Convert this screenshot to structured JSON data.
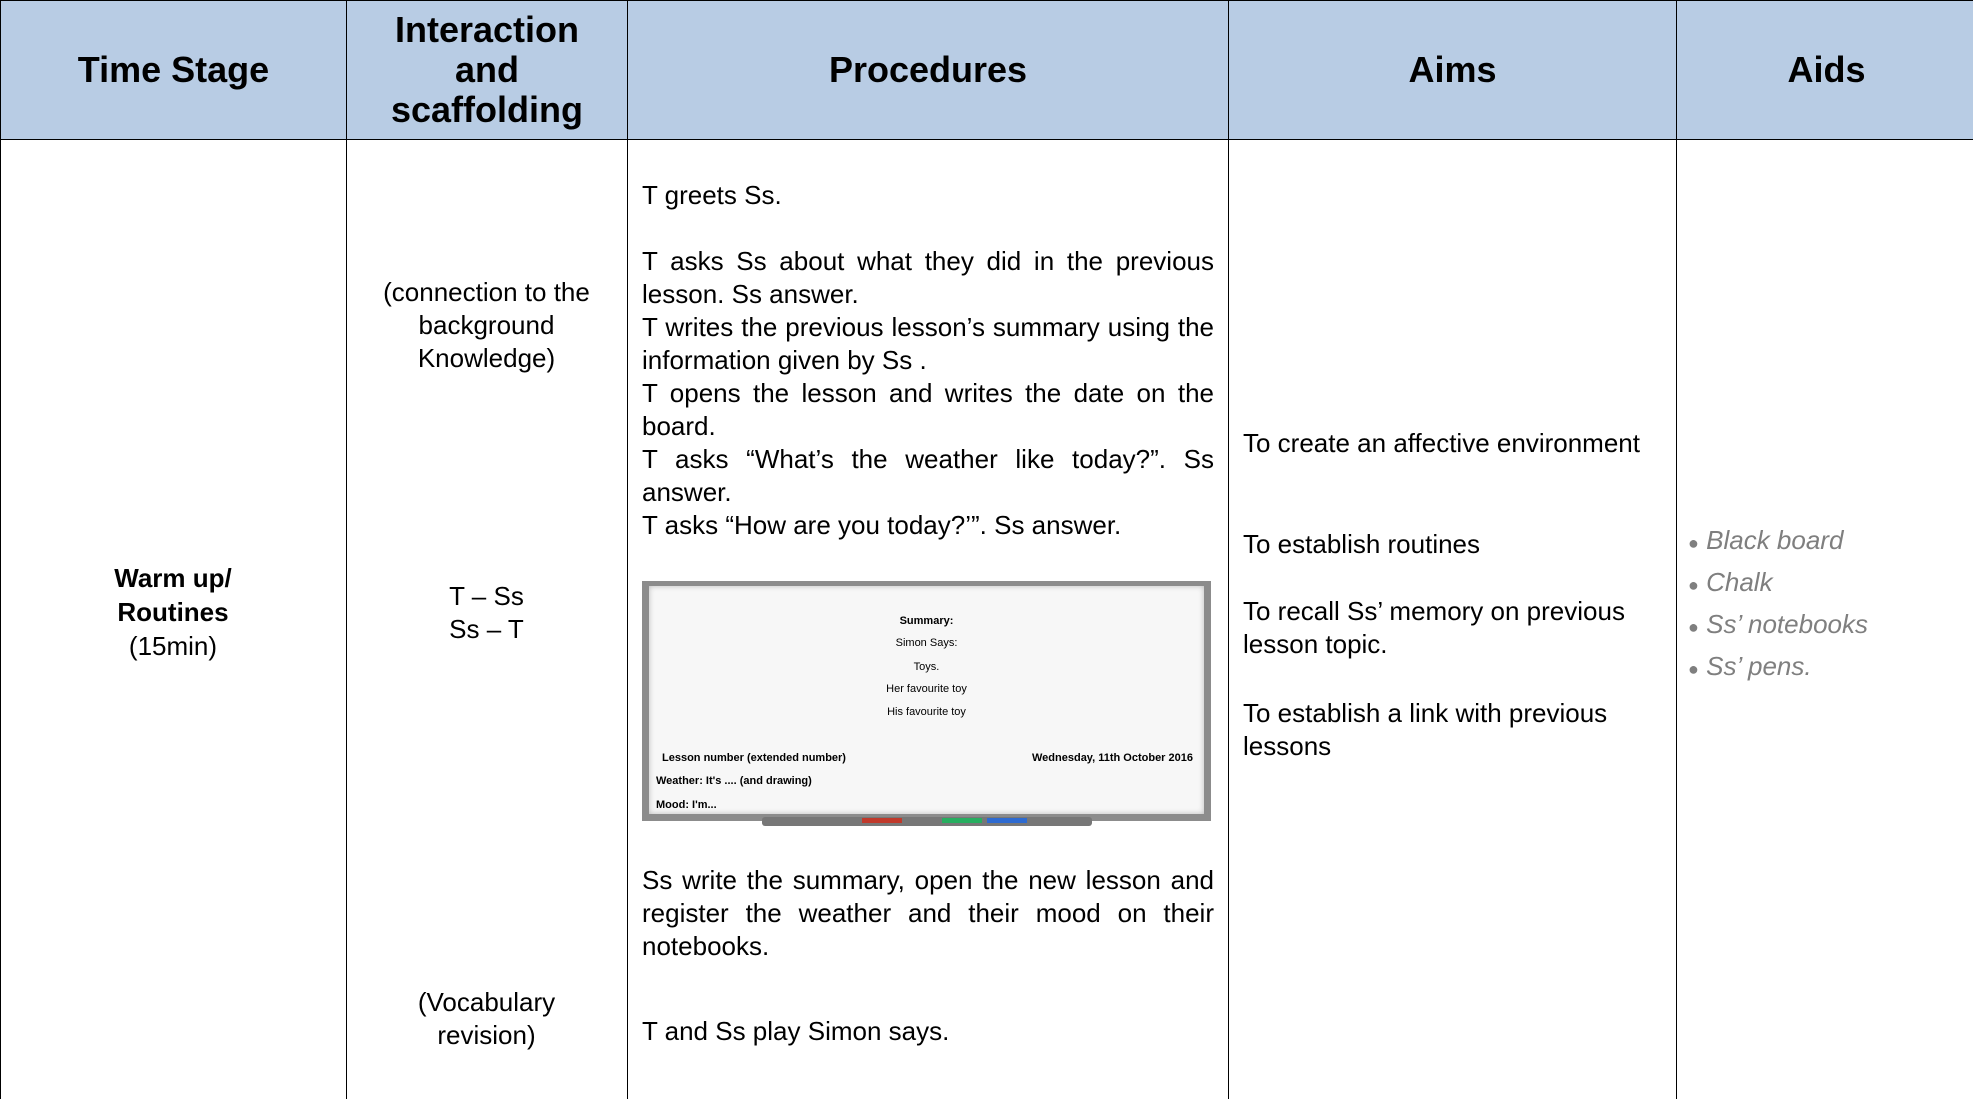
{
  "header": [
    "Time Stage",
    "Interaction and scaffolding",
    "Procedures",
    "Aims",
    "Aids"
  ],
  "row": {
    "time_stage": {
      "lines": [
        "Warm up/",
        "Routines"
      ],
      "duration": "(15min)"
    },
    "interaction": [
      "(connection to the background Knowledge)",
      "T – Ss",
      "Ss – T",
      "(Vocabulary revision)"
    ],
    "procedures": {
      "intro": "T greets Ss.",
      "steps": [
        "T asks Ss about what they did in the previous lesson. Ss answer.",
        "T writes the previous lesson’s summary using the information given by Ss .",
        "T opens the lesson and writes the date on the board.",
        "T asks “What’s the weather like today?”. Ss answer.",
        "T asks “How are you today?’”. Ss answer."
      ],
      "whiteboard": {
        "summary": [
          "Summary:",
          "Simon Says:",
          "Toys.",
          "Her favourite toy",
          "His favourite toy"
        ],
        "lesson": "Lesson number (extended number)",
        "date": "Wednesday, 11th October 2016",
        "weather": "Weather: It's .... (and drawing)",
        "mood": "Mood: I'm..."
      },
      "after": [
        "Ss write the summary, open the new lesson and register the weather and their mood on their notebooks.",
        "T and Ss play Simon says."
      ]
    },
    "aims": [
      "To create an affective environment",
      "To establish routines",
      "To recall Ss’ memory on previous lesson topic.",
      "To establish a link with previous lessons"
    ],
    "aids": [
      "Black board",
      "Chalk",
      "Ss’ notebooks",
      "Ss’ pens."
    ]
  }
}
